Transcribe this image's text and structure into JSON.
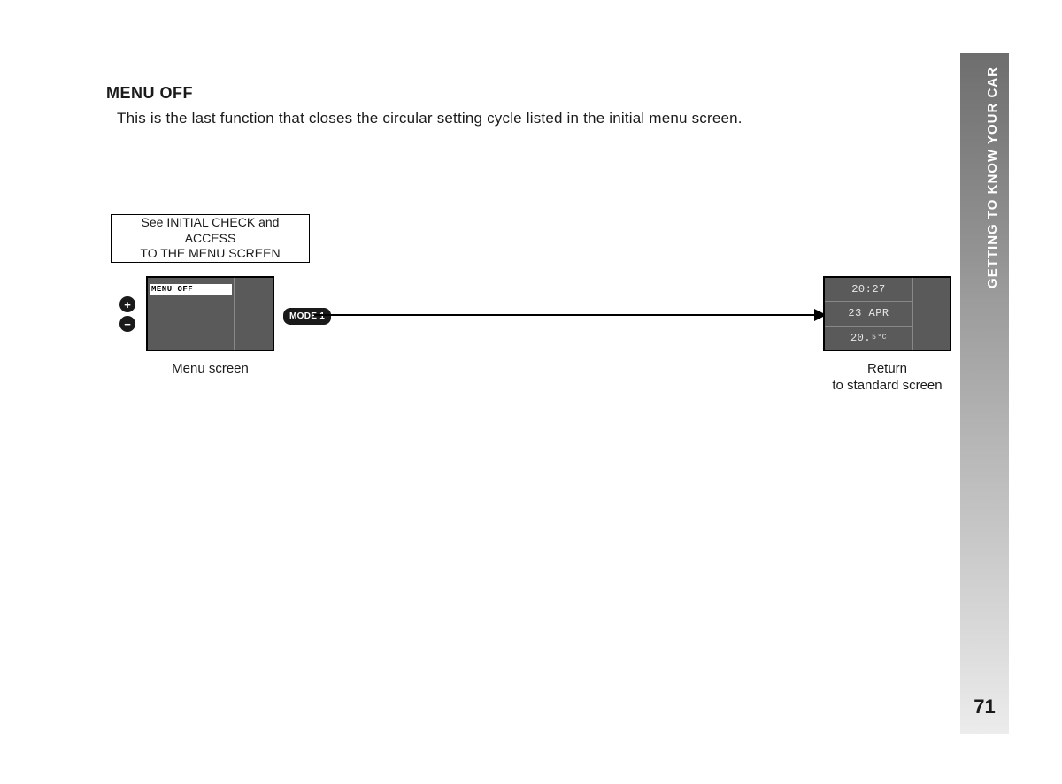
{
  "sidebar": {
    "section_title": "GETTING TO KNOW YOUR CAR",
    "page_number": "71"
  },
  "heading": "MENU OFF",
  "body_text": "This is the last function that closes the circular setting cycle listed in the initial menu screen.",
  "diagram": {
    "note_line1": "See INITIAL CHECK and ACCESS",
    "note_line2": "TO THE MENU SCREEN",
    "plus_symbol": "+",
    "minus_symbol": "−",
    "menu_off_text": "MENU OFF",
    "mode_badge": "MODE 1",
    "menu_caption": "Menu screen",
    "std_caption_line1": "Return",
    "std_caption_line2": "to standard screen",
    "std_time": "20:27",
    "std_date": "23 APR",
    "std_temp_main": "20.",
    "std_temp_dec": "5",
    "std_temp_unit": "°C"
  },
  "colors": {
    "text": "#1a1a1a",
    "screen_bg": "#5a5a5a",
    "screen_text": "#e8e8e8",
    "sidebar_top": "#6e6e6e",
    "sidebar_bottom": "#ececec"
  }
}
